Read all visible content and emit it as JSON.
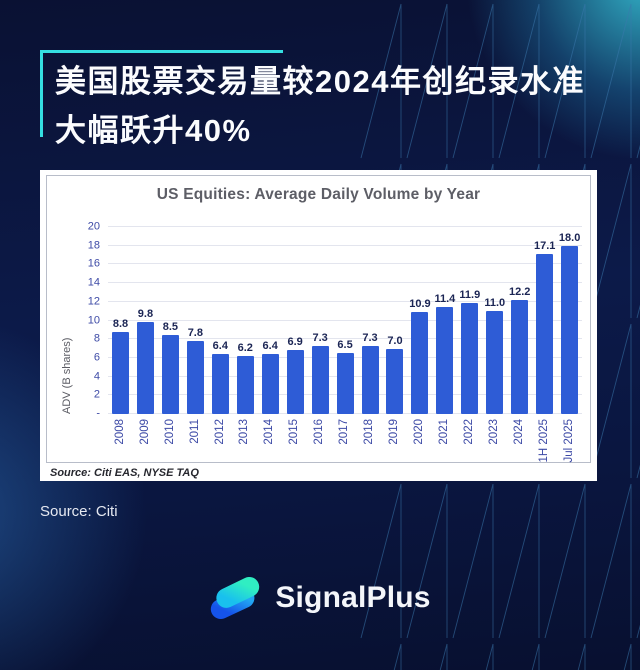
{
  "theme": {
    "background_navy": "#0a1238",
    "accent_cyan": "#35dfe2",
    "bar_blue": "#2e5cd6",
    "panel_white": "#ffffff",
    "logo_teal": "#30eec2",
    "logo_blue": "#1553ea"
  },
  "headline": {
    "line1": "美国股票交易量较2024年创纪录水准",
    "line2": "大幅跃升40%"
  },
  "chart_data": {
    "type": "bar",
    "title": "US Equities:  Average Daily Volume by Year",
    "ylabel": "ADV (B shares)",
    "xlabel": "",
    "categories": [
      "2008",
      "2009",
      "2010",
      "2011",
      "2012",
      "2013",
      "2014",
      "2015",
      "2016",
      "2017",
      "2018",
      "2019",
      "2020",
      "2021",
      "2022",
      "2023",
      "2024",
      "1H 2025",
      "Jul 2025"
    ],
    "values": [
      8.8,
      9.8,
      8.5,
      7.8,
      6.4,
      6.2,
      6.4,
      6.9,
      7.3,
      6.5,
      7.3,
      7.0,
      10.9,
      11.4,
      11.9,
      11.0,
      12.2,
      17.1,
      18.0
    ],
    "ylim": [
      0,
      20
    ],
    "ytick_step": 2,
    "zero_tick_label": "-",
    "grid": true,
    "legend_position": "none",
    "bar_color": "#2e5cd6",
    "source_note": "Source: Citi EAS, NYSE TAQ"
  },
  "footer": {
    "source_label": "Source: Citi",
    "brand": "SignalPlus"
  }
}
